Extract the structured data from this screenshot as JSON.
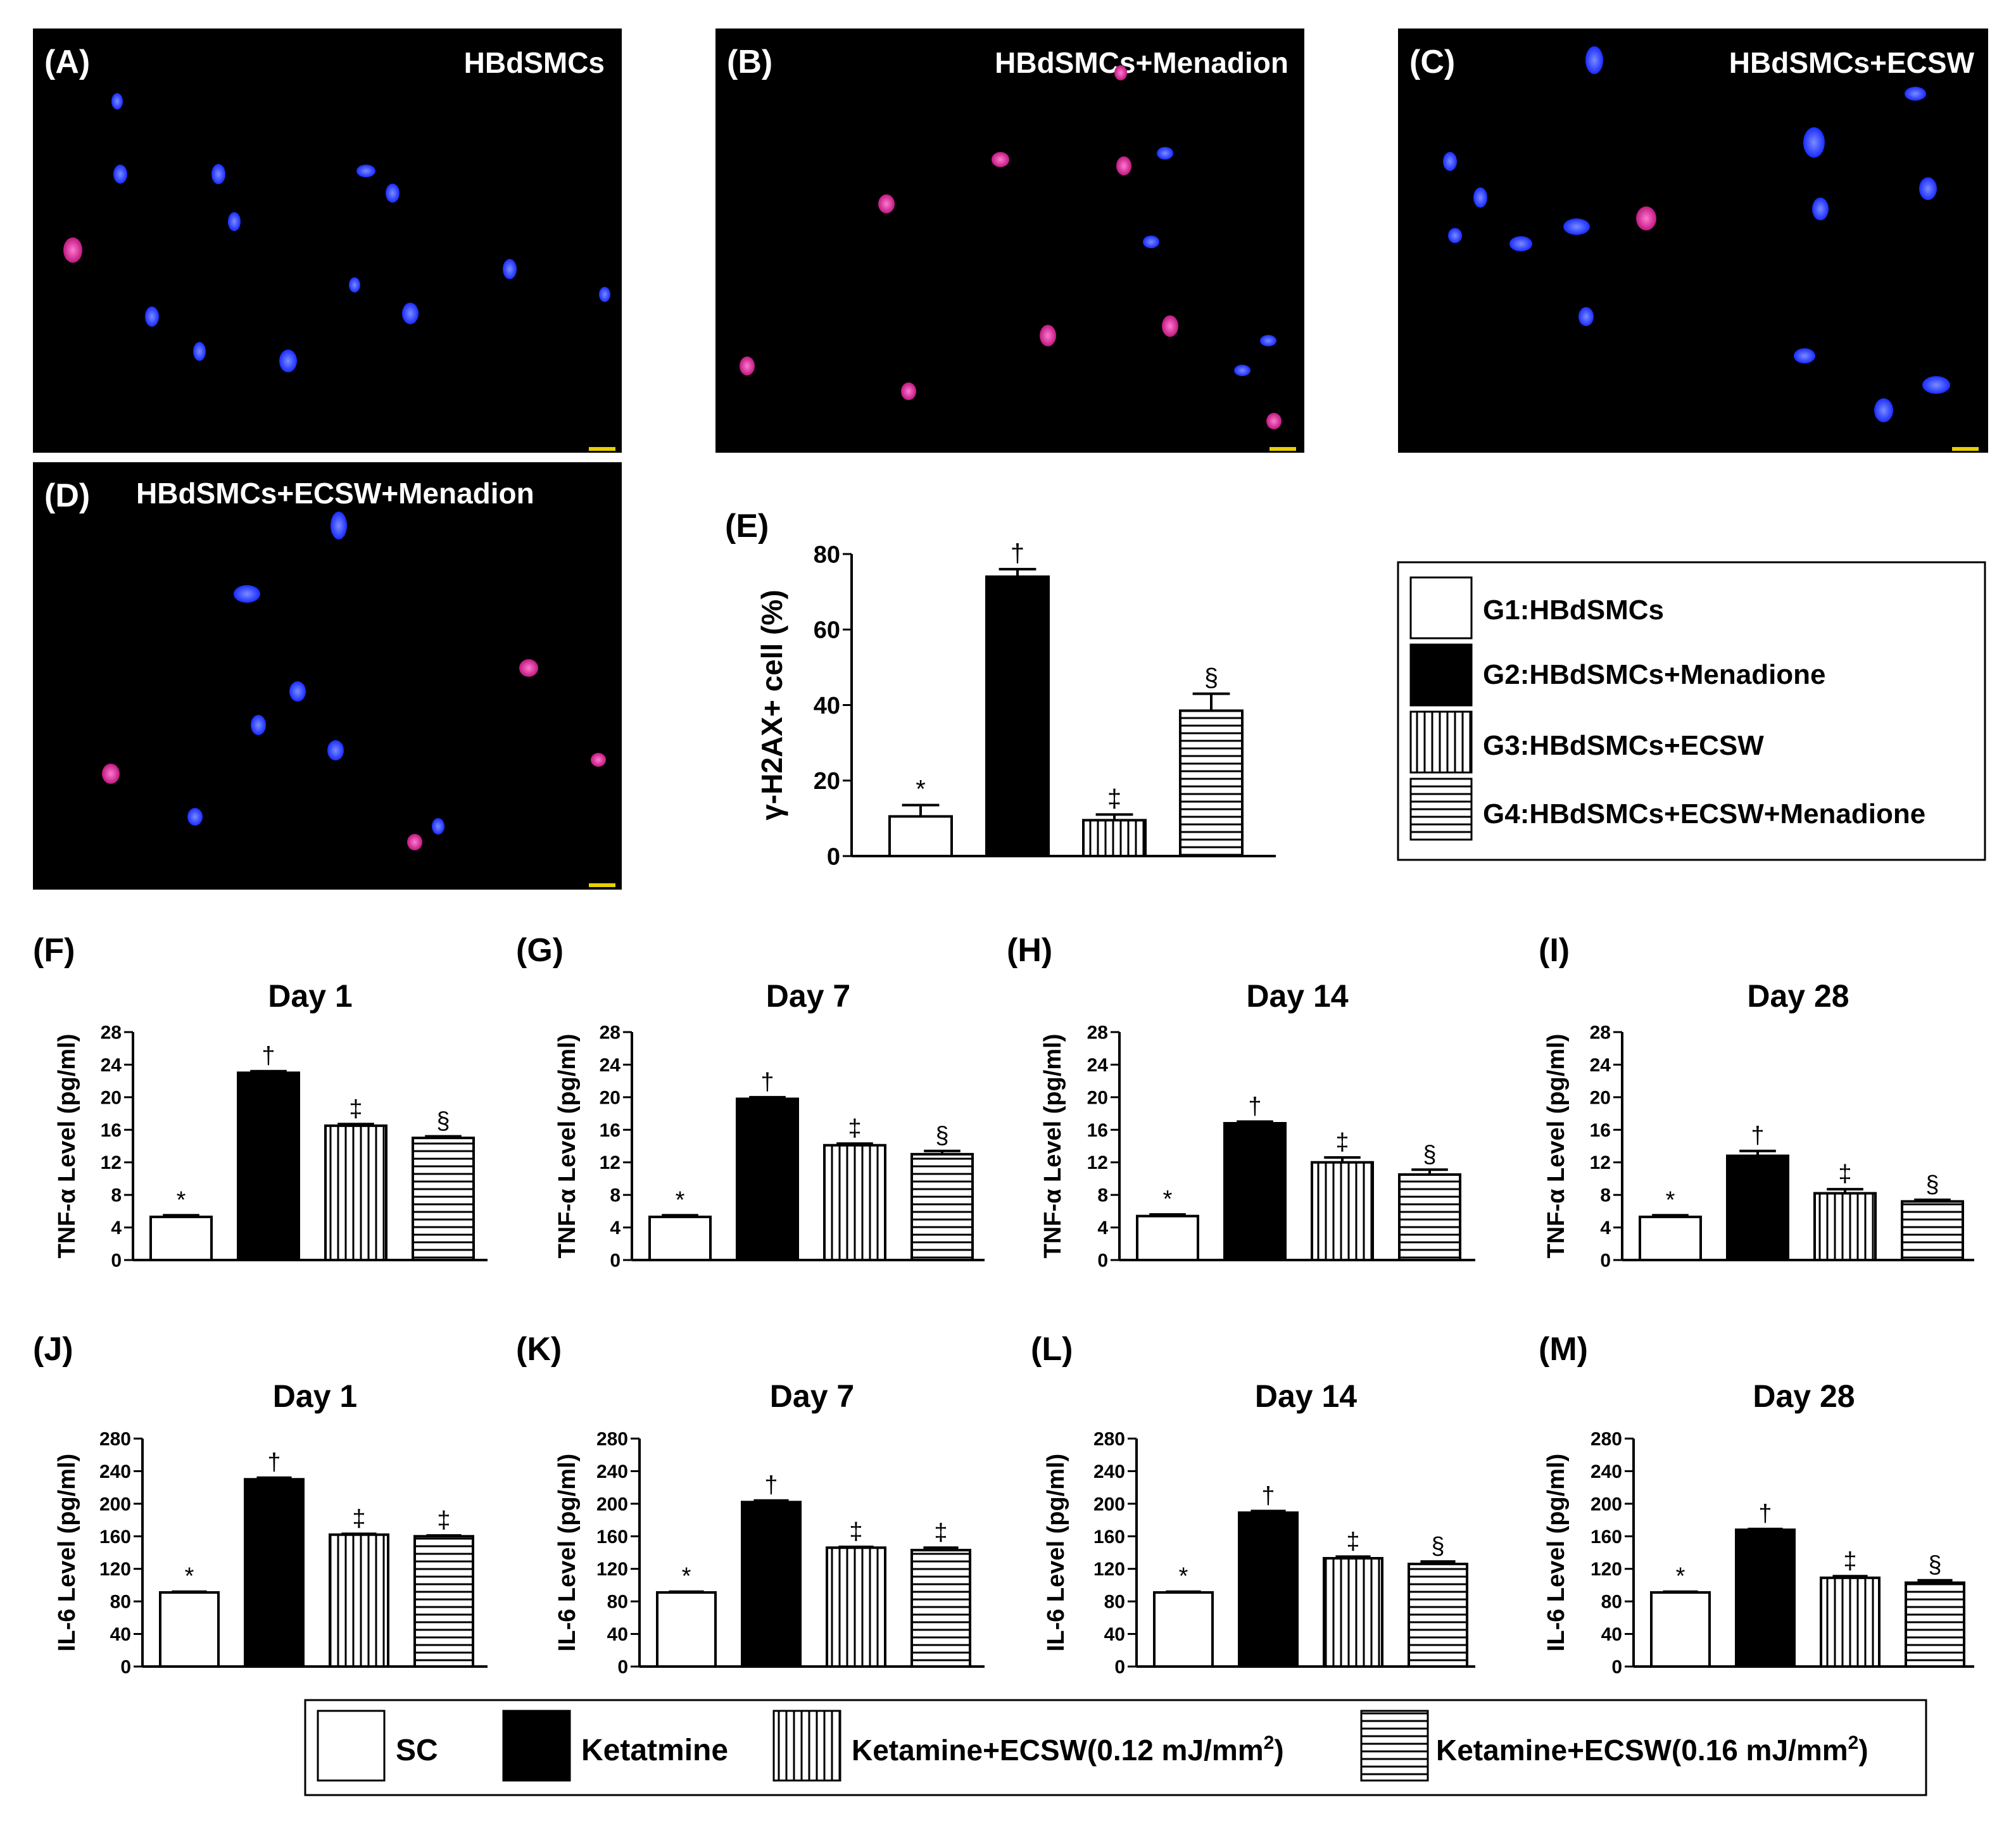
{
  "figure": {
    "micrographs": [
      {
        "letter": "(A)",
        "label": "HBdSMCs"
      },
      {
        "letter": "(B)",
        "label": "HBdSMCs+Menadion"
      },
      {
        "letter": "(C)",
        "label": "HBdSMCs+ECSW"
      },
      {
        "letter": "(D)",
        "label": "HBdSMCs+ECSW+Menadion"
      }
    ],
    "legend_top": {
      "items": [
        {
          "label": "G1:HBdSMCs",
          "pattern": "white"
        },
        {
          "label": "G2:HBdSMCs+Menadione",
          "pattern": "black"
        },
        {
          "label": "G3:HBdSMCs+ECSW",
          "pattern": "vertical"
        },
        {
          "label": "G4:HBdSMCs+ECSW+Menadione",
          "pattern": "horizontal"
        }
      ]
    },
    "legend_bottom": {
      "items": [
        {
          "label": "SC",
          "pattern": "white"
        },
        {
          "label": "Ketatmine",
          "pattern": "black"
        },
        {
          "label": "Ketamine+ECSW(0.12 mJ/mm",
          "sup": "2",
          "suffix": ")",
          "pattern": "vertical"
        },
        {
          "label": "Ketamine+ECSW(0.16 mJ/mm",
          "sup": "2",
          "suffix": ")",
          "pattern": "horizontal"
        }
      ]
    },
    "colors": {
      "nucleus_blue": "#1a2cff",
      "nucleus_pink": "#e0208a",
      "panel_bg": "#000000",
      "scale_bar": "#e8d000"
    }
  },
  "chart_data": [
    {
      "id": "E",
      "panel": "(E)",
      "type": "bar",
      "title": "",
      "ylabel": "γ-H2AX+ cell (%)",
      "ylim": [
        0,
        80
      ],
      "ticks": [
        "0",
        "20",
        "40",
        "60",
        "80"
      ],
      "categories": [
        "G1",
        "G2",
        "G3",
        "G4"
      ],
      "values": [
        10.5,
        74,
        9.5,
        38.5
      ],
      "errors": [
        3,
        2,
        1.5,
        4.5
      ],
      "annotations": [
        "*",
        "†",
        "‡",
        "§"
      ]
    },
    {
      "id": "F",
      "panel": "(F)",
      "type": "bar",
      "title": "Day 1",
      "ylabel": "TNF-α Level (pg/ml)",
      "ylim": [
        0,
        28
      ],
      "ticks": [
        "0",
        "4",
        "8",
        "12",
        "16",
        "20",
        "24",
        "28"
      ],
      "categories": [
        "SC",
        "Ketatmine",
        "ECSW 0.12",
        "ECSW 0.16"
      ],
      "values": [
        5.3,
        23,
        16.5,
        15
      ],
      "errors": [
        0.2,
        0.2,
        0.2,
        0.2
      ],
      "annotations": [
        "*",
        "†",
        "‡",
        "§"
      ]
    },
    {
      "id": "G",
      "panel": "(G)",
      "type": "bar",
      "title": "Day 7",
      "ylabel": "TNF-α Level (pg/ml)",
      "ylim": [
        0,
        28
      ],
      "ticks": [
        "0",
        "4",
        "8",
        "12",
        "16",
        "20",
        "24",
        "28"
      ],
      "categories": [
        "SC",
        "Ketatmine",
        "ECSW 0.12",
        "ECSW 0.16"
      ],
      "values": [
        5.3,
        19.8,
        14.1,
        13
      ],
      "errors": [
        0.2,
        0.2,
        0.2,
        0.4
      ],
      "annotations": [
        "*",
        "†",
        "‡",
        "§"
      ]
    },
    {
      "id": "H",
      "panel": "(H)",
      "type": "bar",
      "title": "Day 14",
      "ylabel": "TNF-α Level (pg/ml)",
      "ylim": [
        0,
        28
      ],
      "ticks": [
        "0",
        "4",
        "8",
        "12",
        "16",
        "20",
        "24",
        "28"
      ],
      "categories": [
        "SC",
        "Ketatmine",
        "ECSW 0.12",
        "ECSW 0.16"
      ],
      "values": [
        5.4,
        16.8,
        12,
        10.5
      ],
      "errors": [
        0.2,
        0.2,
        0.6,
        0.6
      ],
      "annotations": [
        "*",
        "†",
        "‡",
        "§"
      ]
    },
    {
      "id": "I",
      "panel": "(I)",
      "type": "bar",
      "title": "Day 28",
      "ylabel": "TNF-α Level (pg/ml)",
      "ylim": [
        0,
        28
      ],
      "ticks": [
        "0",
        "4",
        "8",
        "12",
        "16",
        "20",
        "24",
        "28"
      ],
      "categories": [
        "SC",
        "Ketatmine",
        "ECSW 0.12",
        "ECSW 0.16"
      ],
      "values": [
        5.3,
        12.8,
        8.2,
        7.2
      ],
      "errors": [
        0.2,
        0.6,
        0.5,
        0.2
      ],
      "annotations": [
        "*",
        "†",
        "‡",
        "§"
      ]
    },
    {
      "id": "J",
      "panel": "(J)",
      "type": "bar",
      "title": "Day 1",
      "ylabel": "IL-6 Level (pg/ml)",
      "ylim": [
        0,
        280
      ],
      "ticks": [
        "0",
        "40",
        "80",
        "120",
        "160",
        "200",
        "240",
        "280"
      ],
      "categories": [
        "SC",
        "Ketatmine",
        "ECSW 0.12",
        "ECSW 0.16"
      ],
      "values": [
        91,
        230,
        162,
        160
      ],
      "errors": [
        1,
        2,
        1,
        1
      ],
      "annotations": [
        "*",
        "†",
        "‡",
        "‡"
      ]
    },
    {
      "id": "K",
      "panel": "(K)",
      "type": "bar",
      "title": "Day 7",
      "ylabel": "IL-6 Level (pg/ml)",
      "ylim": [
        0,
        280
      ],
      "ticks": [
        "0",
        "40",
        "80",
        "120",
        "160",
        "200",
        "240",
        "280"
      ],
      "categories": [
        "SC",
        "Ketatmine",
        "ECSW 0.12",
        "ECSW 0.16"
      ],
      "values": [
        91,
        202,
        146,
        143
      ],
      "errors": [
        1,
        2,
        1,
        3
      ],
      "annotations": [
        "*",
        "†",
        "‡",
        "‡"
      ]
    },
    {
      "id": "L",
      "panel": "(L)",
      "type": "bar",
      "title": "Day 14",
      "ylabel": "IL-6 Level (pg/ml)",
      "ylim": [
        0,
        280
      ],
      "ticks": [
        "0",
        "40",
        "80",
        "120",
        "160",
        "200",
        "240",
        "280"
      ],
      "categories": [
        "SC",
        "Ketatmine",
        "ECSW 0.12",
        "ECSW 0.16"
      ],
      "values": [
        91,
        189,
        133,
        126
      ],
      "errors": [
        1,
        2,
        2,
        3
      ],
      "annotations": [
        "*",
        "†",
        "‡",
        "§"
      ]
    },
    {
      "id": "M",
      "panel": "(M)",
      "type": "bar",
      "title": "Day 28",
      "ylabel": "IL-6 Level (pg/ml)",
      "ylim": [
        0,
        280
      ],
      "ticks": [
        "0",
        "40",
        "80",
        "120",
        "160",
        "200",
        "240",
        "280"
      ],
      "categories": [
        "SC",
        "Ketatmine",
        "ECSW 0.12",
        "ECSW 0.16"
      ],
      "values": [
        91,
        168,
        109,
        103
      ],
      "errors": [
        1,
        1,
        2,
        3
      ],
      "annotations": [
        "*",
        "†",
        "‡",
        "§"
      ]
    }
  ]
}
